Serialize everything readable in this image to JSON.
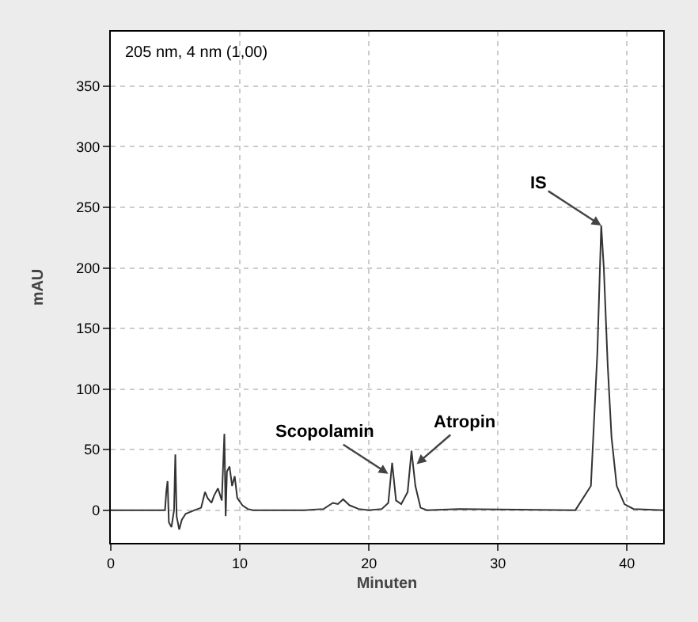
{
  "chart_data": {
    "type": "line",
    "xlabel": "Minuten",
    "ylabel": "mAU",
    "x": [
      0,
      4.2,
      4.3,
      4.4,
      4.5,
      4.7,
      4.9,
      5.0,
      5.1,
      5.3,
      5.5,
      5.8,
      6.5,
      7.0,
      7.3,
      7.5,
      7.8,
      8.0,
      8.3,
      8.6,
      8.8,
      8.9,
      9.0,
      9.2,
      9.4,
      9.6,
      9.8,
      10.2,
      10.6,
      11,
      15,
      16.5,
      17.2,
      17.6,
      18.0,
      18.5,
      19.2,
      20,
      21.0,
      21.5,
      21.8,
      22.1,
      22.5,
      23.0,
      23.3,
      23.6,
      24.0,
      24.5,
      27,
      36,
      37.2,
      37.7,
      38.0,
      38.2,
      38.5,
      38.8,
      39.2,
      39.8,
      40.5,
      42.8
    ],
    "series": [
      {
        "color": "#333333",
        "values": [
          0,
          0,
          15,
          24,
          -10,
          -14,
          0,
          46,
          -5,
          -16,
          -8,
          -3,
          0,
          2,
          15,
          10,
          6,
          12,
          18,
          8,
          63,
          -5,
          32,
          36,
          20,
          28,
          10,
          4,
          1,
          0,
          0,
          1,
          6,
          5,
          9,
          4,
          1,
          0,
          1,
          6,
          39,
          8,
          5,
          15,
          49,
          20,
          2,
          0,
          1,
          0,
          20,
          130,
          235,
          200,
          120,
          60,
          20,
          5,
          1,
          0
        ]
      }
    ],
    "xlim": [
      0,
      42.8
    ],
    "xticks": [
      0,
      10,
      20,
      30,
      40
    ],
    "ylim": [
      -27,
      395
    ],
    "yticks": [
      0,
      50,
      100,
      150,
      200,
      250,
      300,
      350
    ],
    "grid": true,
    "marker": "none",
    "line_style": "solid",
    "annotations": [
      "205 nm, 4 nm (1,00)",
      {
        "text": "Scopolamin",
        "x": 21.5,
        "y": 30
      },
      {
        "text": "Atropin",
        "x": 23.7,
        "y": 38
      },
      {
        "text": "IS",
        "x": 38.0,
        "y": 235
      }
    ]
  }
}
